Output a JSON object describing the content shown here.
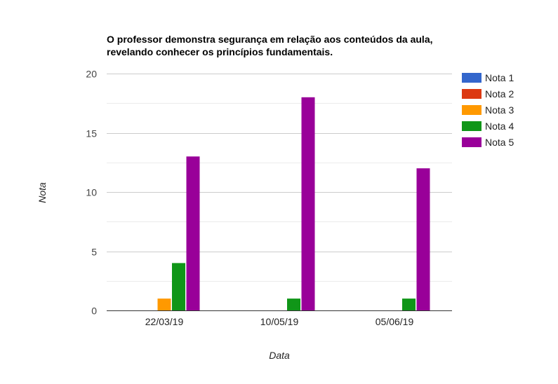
{
  "chart_data": {
    "type": "bar",
    "title": "O professor demonstra segurança em relação aos conteúdos da aula, revelando conhecer os princípios fundamentais.",
    "title_lines": [
      "O professor demonstra segurança em relação aos conteúdos da aula,",
      "revelando conhecer os princípios fundamentais."
    ],
    "xlabel": "Data",
    "ylabel": "Nota",
    "categories": [
      "22/03/19",
      "10/05/19",
      "05/06/19"
    ],
    "ylim": [
      0,
      20
    ],
    "yticks": [
      0,
      5,
      10,
      15,
      20
    ],
    "grid": true,
    "legend_position": "right",
    "series": [
      {
        "name": "Nota 1",
        "color": "#3366cc",
        "values": [
          0,
          0,
          0
        ]
      },
      {
        "name": "Nota 2",
        "color": "#dc3912",
        "values": [
          0,
          0,
          0
        ]
      },
      {
        "name": "Nota 3",
        "color": "#ff9900",
        "values": [
          1,
          0,
          0
        ]
      },
      {
        "name": "Nota 4",
        "color": "#109618",
        "values": [
          4,
          1,
          1
        ]
      },
      {
        "name": "Nota 5",
        "color": "#990099",
        "values": [
          13,
          18,
          12
        ]
      }
    ]
  }
}
